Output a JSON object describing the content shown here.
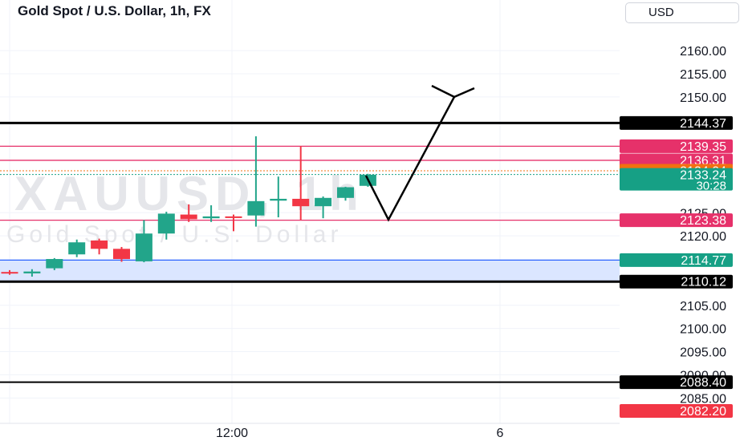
{
  "header": {
    "title": "Gold Spot / U.S. Dollar, 1h, FX",
    "currency": "USD"
  },
  "watermark": {
    "symbol": "XAUUSD, 1h",
    "description": "Gold Spot / U.S. Dollar"
  },
  "colors": {
    "up": "#22a58a",
    "down": "#f23645",
    "black": "#000000",
    "pink_line": "#e6316a",
    "orange": "#f2700f",
    "teal_label": "#16a085",
    "blue_line": "#2962ff",
    "blue_zone": "#dbe6ff"
  },
  "chart_data": {
    "type": "candlestick",
    "x_ticks": [
      "12:00",
      "6"
    ],
    "y_ticks": [
      "2160.00",
      "2155.00",
      "2150.00",
      "2125.00",
      "2120.00",
      "2105.00",
      "2100.00",
      "2095.00",
      "2090.00",
      "2085.00"
    ],
    "ylim": [
      2080.9,
      2164.0
    ],
    "grid": true,
    "candles": [
      {
        "o": 2112.2,
        "h": 2112.6,
        "l": 2111.6,
        "c": 2112.0
      },
      {
        "o": 2111.9,
        "h": 2112.8,
        "l": 2111.2,
        "c": 2112.3
      },
      {
        "o": 2113.0,
        "h": 2115.2,
        "l": 2112.6,
        "c": 2115.0
      },
      {
        "o": 2116.0,
        "h": 2119.2,
        "l": 2115.4,
        "c": 2118.6
      },
      {
        "o": 2119.0,
        "h": 2119.4,
        "l": 2116.0,
        "c": 2117.2
      },
      {
        "o": 2117.2,
        "h": 2117.6,
        "l": 2114.4,
        "c": 2115.0
      },
      {
        "o": 2114.5,
        "h": 2123.4,
        "l": 2114.3,
        "c": 2120.5
      },
      {
        "o": 2120.5,
        "h": 2125.2,
        "l": 2119.2,
        "c": 2124.8
      },
      {
        "o": 2124.6,
        "h": 2126.8,
        "l": 2123.0,
        "c": 2123.6
      },
      {
        "o": 2123.8,
        "h": 2126.6,
        "l": 2123.0,
        "c": 2124.2
      },
      {
        "o": 2124.2,
        "h": 2124.6,
        "l": 2121.0,
        "c": 2124.0
      },
      {
        "o": 2124.4,
        "h": 2141.5,
        "l": 2122.0,
        "c": 2127.5
      },
      {
        "o": 2127.6,
        "h": 2132.8,
        "l": 2124.0,
        "c": 2128.0
      },
      {
        "o": 2128.0,
        "h": 2139.4,
        "l": 2123.4,
        "c": 2126.4
      },
      {
        "o": 2126.4,
        "h": 2128.5,
        "l": 2123.8,
        "c": 2128.2
      },
      {
        "o": 2128.2,
        "h": 2130.6,
        "l": 2127.6,
        "c": 2130.5
      },
      {
        "o": 2130.8,
        "h": 2133.4,
        "l": 2130.6,
        "c": 2133.2
      }
    ],
    "levels": [
      {
        "value": 2144.37,
        "label": "2144.37",
        "kind": "black-thick"
      },
      {
        "value": 2139.35,
        "label": "2139.35",
        "kind": "pink"
      },
      {
        "value": 2136.31,
        "label": "2136.31",
        "kind": "pink"
      },
      {
        "value": 2134.04,
        "label": "2134.04",
        "kind": "orange"
      },
      {
        "value": 2133.24,
        "label": "2133.24",
        "sublabel": "30:28",
        "kind": "teal"
      },
      {
        "value": 2123.38,
        "label": "2123.38",
        "kind": "pink"
      },
      {
        "value": 2114.77,
        "label": "2114.77",
        "kind": "blue"
      },
      {
        "value": 2110.12,
        "label": "2110.12",
        "kind": "black-thick"
      },
      {
        "value": 2088.4,
        "label": "2088.40",
        "kind": "black"
      },
      {
        "value": 2082.2,
        "label": "2082.20",
        "kind": "red-label"
      }
    ],
    "zone": {
      "from": 2110.12,
      "to": 2114.77
    },
    "arrow": [
      [
        2133.0,
        2123.5
      ],
      [
        2123.5,
        2150.0
      ]
    ]
  }
}
